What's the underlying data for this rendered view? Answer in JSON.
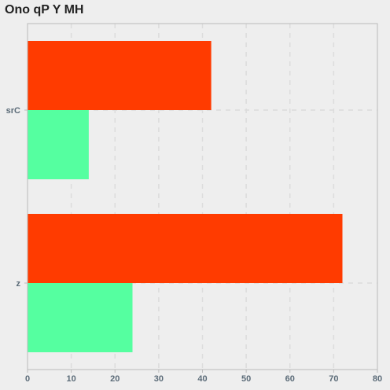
{
  "chart_data": {
    "type": "bar",
    "orientation": "horizontal",
    "title": "Ono qP Y MH",
    "xlabel": "",
    "ylabel": "",
    "categories": [
      "srC",
      "z"
    ],
    "series": [
      {
        "values": [
          42,
          72
        ],
        "color": "#ff3b00"
      },
      {
        "values": [
          14,
          24
        ],
        "color": "#55ffa0"
      }
    ],
    "xlim": [
      0,
      80
    ],
    "xticks": [
      "0",
      "10",
      "20",
      "30",
      "40",
      "50",
      "60",
      "70",
      "80"
    ],
    "grid": true,
    "legend": "none",
    "background": "#eeeeee",
    "axis_color": "#bbbbbb",
    "grid_color": "#dcdcdc",
    "tick_color": "#5b6b78"
  }
}
